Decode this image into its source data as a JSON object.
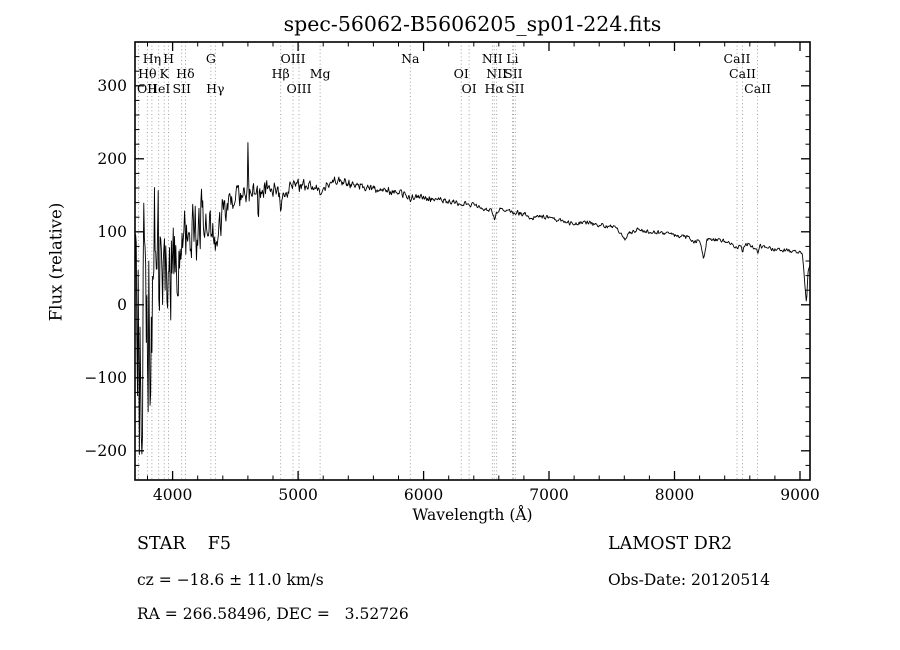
{
  "title": "spec-56062-B5606205_sp01-224.fits",
  "annotations": {
    "class_label": "STAR    F5",
    "survey": "LAMOST DR2",
    "cz": "cz = −18.6 ± 11.0 km/s",
    "obs_date": "Obs-Date: 20120514",
    "coords": "RA = 266.58496, DEC =   3.52726"
  },
  "chart_data": {
    "type": "line",
    "title": "spec-56062-B5606205_sp01-224.fits",
    "xlabel": "Wavelength (Å)",
    "ylabel": "Flux (relative)",
    "xlim": [
      3700,
      9080
    ],
    "ylim": [
      -240,
      360
    ],
    "x_minor_step": 200,
    "y_minor_step": 20,
    "x_ticks": [
      {
        "v": 4000,
        "label": "4000"
      },
      {
        "v": 5000,
        "label": "5000"
      },
      {
        "v": 6000,
        "label": "6000"
      },
      {
        "v": 7000,
        "label": "7000"
      },
      {
        "v": 8000,
        "label": "8000"
      },
      {
        "v": 9000,
        "label": "9000"
      }
    ],
    "y_ticks": [
      {
        "v": -200,
        "label": "−200"
      },
      {
        "v": -100,
        "label": "−100"
      },
      {
        "v": 0,
        "label": "0"
      },
      {
        "v": 100,
        "label": "100"
      },
      {
        "v": 200,
        "label": "200"
      },
      {
        "v": 300,
        "label": "300"
      }
    ],
    "line_color": "#000000",
    "marker_line_color": "#8a8a8a",
    "sample_step": 5,
    "noise_seed": 20120514,
    "noise_scale": 1.15,
    "clip": [
      -218,
      255
    ],
    "spectral_lines": [
      {
        "label": "Hη",
        "wavelength": 3835,
        "row": 0
      },
      {
        "label": "H",
        "wavelength": 3968,
        "row": 0
      },
      {
        "label": "G",
        "wavelength": 4305,
        "row": 0
      },
      {
        "label": "OIII",
        "wavelength": 4959,
        "row": 0
      },
      {
        "label": "Na",
        "wavelength": 5894,
        "row": 0
      },
      {
        "label": "NII",
        "wavelength": 6548,
        "row": 0
      },
      {
        "label": "Li",
        "wavelength": 6708,
        "row": 0
      },
      {
        "label": "CaII",
        "wavelength": 8498,
        "row": 0
      },
      {
        "label": "Hθ",
        "wavelength": 3798,
        "row": 1
      },
      {
        "label": "K",
        "wavelength": 3933,
        "row": 1
      },
      {
        "label": "Hδ",
        "wavelength": 4102,
        "row": 1
      },
      {
        "label": "Hβ",
        "wavelength": 4861,
        "row": 1
      },
      {
        "label": "Mg",
        "wavelength": 5175,
        "row": 1
      },
      {
        "label": "OI",
        "wavelength": 6300,
        "row": 1
      },
      {
        "label": "NII",
        "wavelength": 6583,
        "row": 1
      },
      {
        "label": "SII",
        "wavelength": 6716,
        "row": 1
      },
      {
        "label": "CaII",
        "wavelength": 8542,
        "row": 1
      },
      {
        "label": "OII",
        "wavelength": 3727,
        "row": 2
      },
      {
        "label": "HeI",
        "wavelength": 3889,
        "row": 2
      },
      {
        "label": "SII",
        "wavelength": 4072,
        "row": 2
      },
      {
        "label": "Hγ",
        "wavelength": 4340,
        "row": 2
      },
      {
        "label": "OIII",
        "wavelength": 5007,
        "row": 2
      },
      {
        "label": "OI",
        "wavelength": 6363,
        "row": 2
      },
      {
        "label": "Hα",
        "wavelength": 6563,
        "row": 2
      },
      {
        "label": "SII",
        "wavelength": 6731,
        "row": 2
      },
      {
        "label": "CaII",
        "wavelength": 8662,
        "row": 2
      }
    ],
    "envelope": [
      [
        3700,
        10
      ],
      [
        3720,
        -20
      ],
      [
        3740,
        40
      ],
      [
        3760,
        -10
      ],
      [
        3780,
        30
      ],
      [
        3800,
        25
      ],
      [
        3830,
        -10
      ],
      [
        3850,
        45
      ],
      [
        3880,
        20
      ],
      [
        3900,
        50
      ],
      [
        3930,
        30
      ],
      [
        3950,
        60
      ],
      [
        3980,
        40
      ],
      [
        4000,
        70
      ],
      [
        4050,
        78
      ],
      [
        4100,
        82
      ],
      [
        4150,
        95
      ],
      [
        4200,
        100
      ],
      [
        4222,
        115
      ],
      [
        4228,
        190
      ],
      [
        4234,
        115
      ],
      [
        4270,
        108
      ],
      [
        4300,
        103
      ],
      [
        4330,
        98
      ],
      [
        4345,
        93
      ],
      [
        4365,
        112
      ],
      [
        4400,
        128
      ],
      [
        4450,
        140
      ],
      [
        4500,
        147
      ],
      [
        4550,
        150
      ],
      [
        4594,
        152
      ],
      [
        4601,
        225
      ],
      [
        4608,
        152
      ],
      [
        4650,
        154
      ],
      [
        4675,
        150
      ],
      [
        4682,
        100
      ],
      [
        4690,
        152
      ],
      [
        4730,
        158
      ],
      [
        4780,
        160
      ],
      [
        4830,
        157
      ],
      [
        4852,
        150
      ],
      [
        4862,
        133
      ],
      [
        4874,
        154
      ],
      [
        4920,
        158
      ],
      [
        4970,
        161
      ],
      [
        5020,
        164
      ],
      [
        5080,
        165
      ],
      [
        5140,
        162
      ],
      [
        5160,
        156
      ],
      [
        5178,
        148
      ],
      [
        5195,
        157
      ],
      [
        5240,
        166
      ],
      [
        5300,
        170
      ],
      [
        5360,
        168
      ],
      [
        5420,
        166
      ],
      [
        5480,
        164
      ],
      [
        5540,
        162
      ],
      [
        5600,
        160
      ],
      [
        5700,
        157
      ],
      [
        5800,
        154
      ],
      [
        5878,
        149
      ],
      [
        5895,
        139
      ],
      [
        5912,
        149
      ],
      [
        6000,
        147
      ],
      [
        6100,
        145
      ],
      [
        6200,
        142
      ],
      [
        6290,
        139
      ],
      [
        6330,
        138
      ],
      [
        6400,
        136
      ],
      [
        6480,
        133
      ],
      [
        6540,
        128
      ],
      [
        6556,
        124
      ],
      [
        6565,
        114
      ],
      [
        6578,
        128
      ],
      [
        6640,
        130
      ],
      [
        6700,
        128
      ],
      [
        6760,
        126
      ],
      [
        6820,
        124
      ],
      [
        6860,
        115
      ],
      [
        6885,
        121
      ],
      [
        6950,
        121
      ],
      [
        7000,
        119
      ],
      [
        7080,
        116
      ],
      [
        7160,
        112
      ],
      [
        7220,
        111
      ],
      [
        7280,
        113
      ],
      [
        7350,
        111
      ],
      [
        7430,
        109
      ],
      [
        7500,
        107
      ],
      [
        7570,
        100
      ],
      [
        7605,
        88
      ],
      [
        7640,
        98
      ],
      [
        7700,
        103
      ],
      [
        7780,
        101
      ],
      [
        7860,
        99
      ],
      [
        7940,
        97
      ],
      [
        8020,
        95
      ],
      [
        8100,
        93
      ],
      [
        8160,
        86
      ],
      [
        8200,
        89
      ],
      [
        8230,
        63
      ],
      [
        8260,
        90
      ],
      [
        8320,
        89
      ],
      [
        8380,
        88
      ],
      [
        8440,
        86
      ],
      [
        8492,
        78
      ],
      [
        8500,
        74
      ],
      [
        8512,
        83
      ],
      [
        8536,
        77
      ],
      [
        8544,
        72
      ],
      [
        8558,
        82
      ],
      [
        8600,
        83
      ],
      [
        8652,
        77
      ],
      [
        8664,
        70
      ],
      [
        8678,
        80
      ],
      [
        8720,
        79
      ],
      [
        8780,
        77
      ],
      [
        8840,
        76
      ],
      [
        8900,
        74
      ],
      [
        8960,
        73
      ],
      [
        9000,
        71
      ],
      [
        9020,
        69
      ],
      [
        9040,
        25
      ],
      [
        9052,
        2
      ],
      [
        9066,
        50
      ],
      [
        9080,
        58
      ]
    ],
    "noise_amp": [
      [
        3700,
        235
      ],
      [
        3740,
        215
      ],
      [
        3780,
        195
      ],
      [
        3820,
        170
      ],
      [
        3860,
        150
      ],
      [
        3900,
        115
      ],
      [
        3950,
        92
      ],
      [
        4000,
        75
      ],
      [
        4060,
        62
      ],
      [
        4120,
        52
      ],
      [
        4180,
        45
      ],
      [
        4250,
        36
      ],
      [
        4320,
        30
      ],
      [
        4400,
        24
      ],
      [
        4500,
        17
      ],
      [
        4600,
        14
      ],
      [
        4700,
        12
      ],
      [
        4800,
        11
      ],
      [
        4900,
        10
      ],
      [
        5000,
        9
      ],
      [
        5200,
        7
      ],
      [
        5400,
        6
      ],
      [
        5600,
        5.5
      ],
      [
        5800,
        5
      ],
      [
        6000,
        4.5
      ],
      [
        6300,
        4
      ],
      [
        6600,
        3.5
      ],
      [
        7000,
        3
      ],
      [
        7500,
        3
      ],
      [
        8000,
        3
      ],
      [
        8500,
        3
      ],
      [
        9000,
        3
      ],
      [
        9080,
        4
      ]
    ]
  }
}
